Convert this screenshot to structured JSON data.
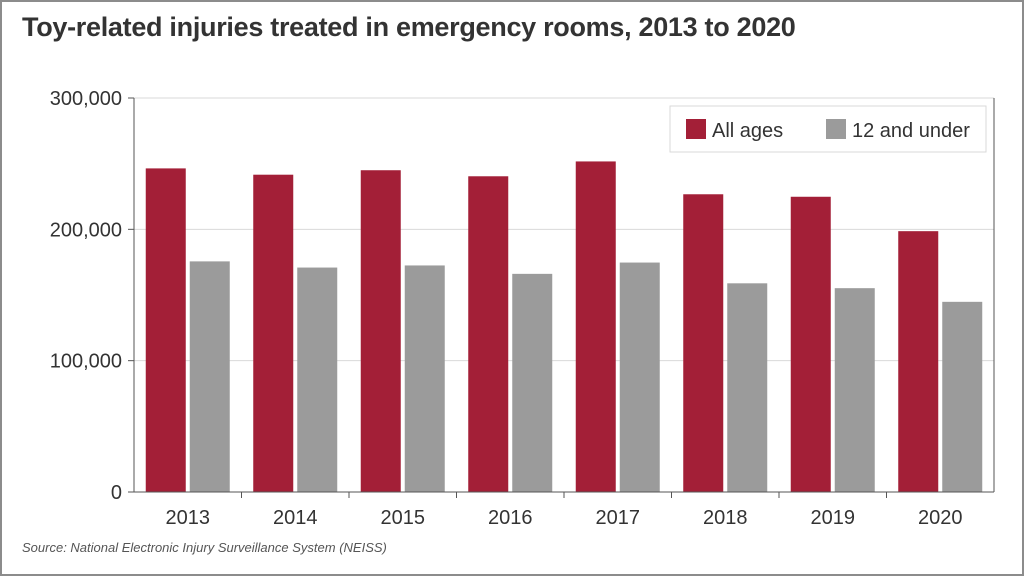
{
  "title": "Toy-related injuries treated in emergency rooms, 2013 to 2020",
  "source": "Source: National Electronic Injury Surveillance System (NEISS)",
  "colors": {
    "all_ages": "#a31f37",
    "under_12": "#9b9b9b",
    "grid": "#d9d9d9",
    "axis": "#555555"
  },
  "chart_data": {
    "type": "bar",
    "categories": [
      "2013",
      "2014",
      "2015",
      "2016",
      "2017",
      "2018",
      "2019",
      "2020"
    ],
    "series": [
      {
        "name": "All ages",
        "values": [
          246400,
          241600,
          245000,
          240400,
          251700,
          226700,
          224800,
          198600
        ]
      },
      {
        "name": "12 and under",
        "values": [
          175600,
          170900,
          172500,
          166100,
          174700,
          158900,
          155200,
          144800
        ]
      }
    ],
    "ylim": [
      0,
      300000
    ],
    "yticks": [
      0,
      100000,
      200000,
      300000
    ],
    "ytick_labels": [
      "0",
      "100,000",
      "200,000",
      "300,000"
    ],
    "grid": true,
    "legend_position": "top-right",
    "xlabel": "",
    "ylabel": ""
  }
}
